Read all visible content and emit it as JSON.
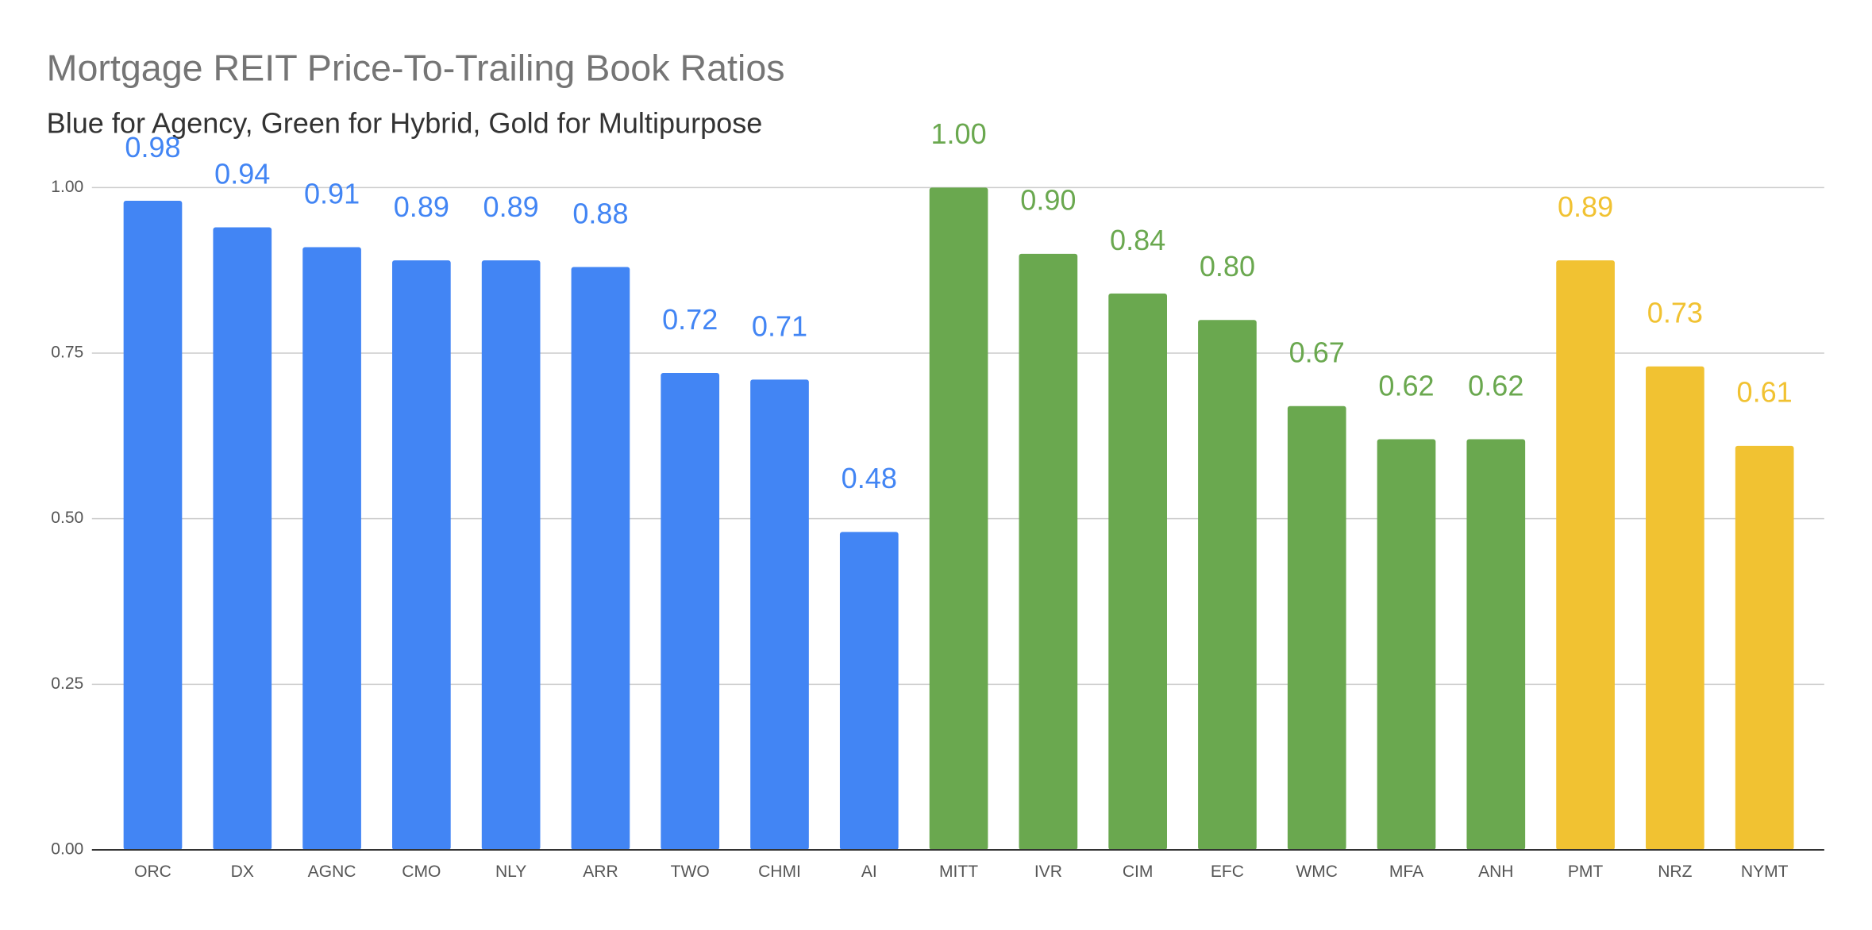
{
  "chart_data": {
    "type": "bar",
    "title": "Mortgage REIT Price-To-Trailing Book Ratios",
    "subtitle": "Blue for Agency, Green for Hybrid, Gold for Multipurpose",
    "categories": [
      "ORC",
      "DX",
      "AGNC",
      "CMO",
      "NLY",
      "ARR",
      "TWO",
      "CHMI",
      "AI",
      "MITT",
      "IVR",
      "CIM",
      "EFC",
      "WMC",
      "MFA",
      "ANH",
      "PMT",
      "NRZ",
      "NYMT"
    ],
    "values": [
      0.98,
      0.94,
      0.91,
      0.89,
      0.89,
      0.88,
      0.72,
      0.71,
      0.48,
      1.0,
      0.9,
      0.84,
      0.8,
      0.67,
      0.62,
      0.62,
      0.89,
      0.73,
      0.61
    ],
    "value_labels": [
      "0.98",
      "0.94",
      "0.91",
      "0.89",
      "0.89",
      "0.88",
      "0.72",
      "0.71",
      "0.48",
      "1.00",
      "0.90",
      "0.84",
      "0.80",
      "0.67",
      "0.62",
      "0.62",
      "0.89",
      "0.73",
      "0.61"
    ],
    "colors": [
      "#4285f4",
      "#4285f4",
      "#4285f4",
      "#4285f4",
      "#4285f4",
      "#4285f4",
      "#4285f4",
      "#4285f4",
      "#4285f4",
      "#6aa84f",
      "#6aa84f",
      "#6aa84f",
      "#6aa84f",
      "#6aa84f",
      "#6aa84f",
      "#6aa84f",
      "#f1c232",
      "#f1c232",
      "#f1c232"
    ],
    "ylim": [
      0,
      1
    ],
    "yticks": [
      {
        "value": 0,
        "label": "0.00"
      },
      {
        "value": 0.25,
        "label": "0.25"
      },
      {
        "value": 0.5,
        "label": "0.50"
      },
      {
        "value": 0.75,
        "label": "0.75"
      },
      {
        "value": 1,
        "label": "1.00"
      }
    ],
    "grid": true
  }
}
